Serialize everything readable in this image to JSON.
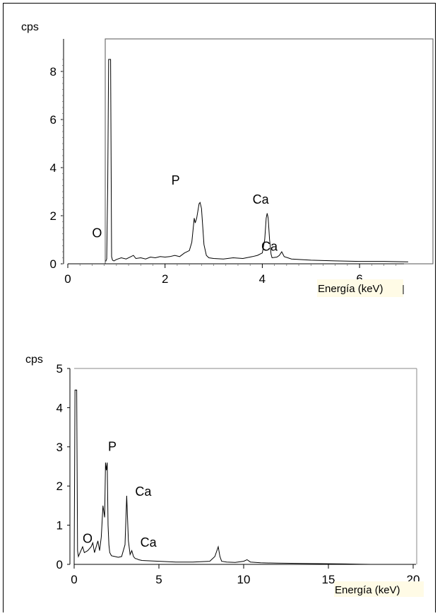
{
  "chart_data": [
    {
      "type": "line",
      "ylabel": "cps",
      "xlabel": "Energía (keV)",
      "xlim": [
        0,
        7
      ],
      "ylim": [
        0,
        8.5
      ],
      "xticks": [
        "0",
        "2",
        "4",
        "6"
      ],
      "yticks": [
        "0",
        "2",
        "4",
        "6",
        "8"
      ],
      "annotations": [
        {
          "text": "O",
          "x": 0.5,
          "y": 1.1
        },
        {
          "text": "P",
          "x": 2.13,
          "y": 3.3
        },
        {
          "text": "Ca",
          "x": 3.8,
          "y": 2.5
        },
        {
          "text": "Ca",
          "x": 3.98,
          "y": 0.55
        }
      ],
      "series": [
        {
          "x": [
            0.78,
            0.8,
            0.82,
            0.84,
            0.86,
            0.88,
            0.9,
            0.92,
            0.95,
            1.0,
            1.1,
            1.2,
            1.3,
            1.35,
            1.4,
            1.5,
            1.6,
            1.7,
            1.8,
            1.9,
            2.0,
            2.1,
            2.2,
            2.3,
            2.4,
            2.5,
            2.55,
            2.6,
            2.62,
            2.65,
            2.7,
            2.72,
            2.75,
            2.78,
            2.8,
            2.85,
            2.9,
            3.0,
            3.2,
            3.4,
            3.6,
            3.8,
            3.9,
            4.0,
            4.05,
            4.08,
            4.1,
            4.12,
            4.15,
            4.18,
            4.2,
            4.3,
            4.35,
            4.4,
            4.45,
            4.6,
            5.0,
            5.5,
            6.0,
            6.5,
            7.0
          ],
          "y": [
            0.1,
            0.2,
            3.2,
            8.5,
            8.5,
            8.5,
            0.3,
            0.15,
            0.12,
            0.18,
            0.25,
            0.2,
            0.3,
            0.35,
            0.22,
            0.25,
            0.2,
            0.28,
            0.25,
            0.3,
            0.28,
            0.3,
            0.35,
            0.3,
            0.45,
            0.55,
            0.9,
            1.9,
            1.7,
            1.9,
            2.5,
            2.55,
            2.3,
            1.4,
            0.8,
            0.35,
            0.25,
            0.22,
            0.2,
            0.25,
            0.22,
            0.3,
            0.35,
            0.45,
            1.0,
            1.9,
            2.1,
            1.9,
            1.0,
            0.4,
            0.25,
            0.28,
            0.35,
            0.5,
            0.3,
            0.2,
            0.15,
            0.12,
            0.1,
            0.1,
            0.08
          ]
        }
      ]
    },
    {
      "type": "line",
      "ylabel": "cps",
      "xlabel": "Energía (keV)",
      "xlim": [
        0,
        20
      ],
      "ylim": [
        0,
        5
      ],
      "xticks": [
        "0",
        "5",
        "10",
        "15",
        "20"
      ],
      "yticks": [
        "0",
        "1",
        "2",
        "3",
        "4",
        "5"
      ],
      "annotations": [
        {
          "text": "O",
          "x": 0.5,
          "y": 0.55
        },
        {
          "text": "P",
          "x": 2.0,
          "y": 2.9
        },
        {
          "text": "Ca",
          "x": 3.6,
          "y": 1.75
        },
        {
          "text": "Ca",
          "x": 3.9,
          "y": 0.45
        }
      ],
      "series": [
        {
          "x": [
            0.0,
            0.05,
            0.1,
            0.15,
            0.2,
            0.25,
            0.3,
            0.4,
            0.5,
            0.6,
            0.8,
            1.0,
            1.1,
            1.2,
            1.4,
            1.5,
            1.6,
            1.7,
            1.8,
            1.85,
            1.9,
            1.95,
            2.0,
            2.05,
            2.1,
            2.2,
            2.4,
            2.6,
            2.8,
            3.0,
            3.1,
            3.2,
            3.3,
            3.4,
            3.5,
            3.6,
            3.7,
            3.8,
            4.0,
            5.0,
            6.0,
            7.0,
            8.0,
            8.3,
            8.5,
            8.6,
            8.7,
            9.0,
            9.5,
            10.0,
            10.2,
            10.4,
            11.0,
            12.0,
            14.0,
            16.0,
            17.5
          ],
          "y": [
            0.0,
            4.45,
            4.45,
            4.45,
            0.35,
            0.2,
            0.25,
            0.35,
            0.45,
            0.3,
            0.35,
            0.45,
            0.55,
            0.3,
            0.6,
            0.35,
            0.7,
            1.5,
            1.2,
            2.6,
            2.4,
            2.6,
            1.0,
            0.5,
            0.3,
            0.22,
            0.2,
            0.18,
            0.2,
            0.5,
            1.75,
            0.6,
            0.25,
            0.35,
            0.2,
            0.15,
            0.14,
            0.12,
            0.1,
            0.08,
            0.06,
            0.06,
            0.08,
            0.2,
            0.45,
            0.2,
            0.08,
            0.06,
            0.05,
            0.08,
            0.12,
            0.06,
            0.04,
            0.03,
            0.02,
            0.01,
            0.0
          ]
        }
      ]
    }
  ]
}
